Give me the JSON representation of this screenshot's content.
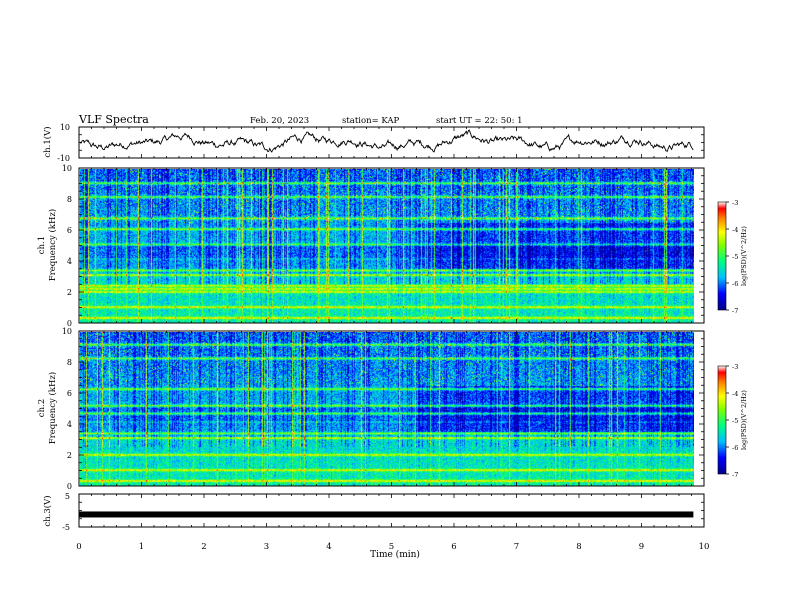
{
  "header": {
    "title": "VLF Spectra",
    "date": "Feb. 20, 2023",
    "station": "station= KAP",
    "start": "start  UT  =   22: 50: 1"
  },
  "chart_data": [
    {
      "type": "line",
      "name": "ch1-waveform",
      "ylabel": "ch.1(V)",
      "ylim": [
        -10,
        10
      ],
      "yticks": [
        "10",
        "-10"
      ],
      "xlim": [
        0,
        10
      ]
    },
    {
      "type": "heatmap",
      "name": "ch1-spectrogram",
      "ylabel_line1": "ch.1",
      "ylabel_line2": "Frequency (kHz)",
      "ylim": [
        0,
        10
      ],
      "yticks": [
        "0",
        "2",
        "4",
        "6",
        "8",
        "10"
      ],
      "xlim": [
        0,
        10
      ],
      "time_extent_min": 9.83,
      "colorbar": {
        "label": "log(PSD)(V^2/Hz)",
        "range": [
          -7,
          -3
        ],
        "ticks": [
          "-3",
          "-4",
          "-5",
          "-6",
          "-7"
        ]
      },
      "bands_khz": [
        0.3,
        1.0,
        2.0,
        2.2,
        2.4,
        3.1,
        3.4,
        5.1,
        6.1,
        6.8,
        8.2,
        9.1
      ]
    },
    {
      "type": "heatmap",
      "name": "ch2-spectrogram",
      "ylabel_line1": "ch.2",
      "ylabel_line2": "Frequency (kHz)",
      "ylim": [
        0,
        10
      ],
      "yticks": [
        "0",
        "2",
        "4",
        "6",
        "8",
        "10"
      ],
      "xlim": [
        0,
        10
      ],
      "time_extent_min": 9.83,
      "colorbar": {
        "label": "log(PSD)(V^2/Hz)",
        "range": [
          -7,
          -3
        ],
        "ticks": [
          "-3",
          "-4",
          "-5",
          "-6",
          "-7"
        ]
      },
      "bands_khz": [
        0.3,
        1.0,
        2.0,
        3.1,
        3.4,
        4.7,
        5.2,
        6.3,
        8.3,
        9.2
      ]
    },
    {
      "type": "line",
      "name": "ch3-signal",
      "ylabel": "ch.3(V)",
      "ylim": [
        -5,
        5
      ],
      "yticks": [
        "5",
        "-5"
      ],
      "xlim": [
        0,
        10
      ],
      "level": -1.2,
      "xlabel": "Time  (min)",
      "xticks": [
        "0",
        "1",
        "2",
        "3",
        "4",
        "5",
        "6",
        "7",
        "8",
        "9",
        "10"
      ]
    }
  ]
}
